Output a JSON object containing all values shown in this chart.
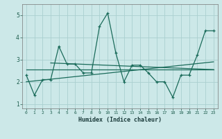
{
  "title": "",
  "xlabel": "Humidex (Indice chaleur)",
  "background_color": "#cce8e8",
  "grid_color": "#aad0d0",
  "line_color": "#1a6b5a",
  "xlim": [
    -0.5,
    23.5
  ],
  "ylim": [
    0.8,
    5.5
  ],
  "yticks": [
    1,
    2,
    3,
    4,
    5
  ],
  "xticks": [
    0,
    1,
    2,
    3,
    4,
    5,
    6,
    7,
    8,
    9,
    10,
    11,
    12,
    13,
    14,
    15,
    16,
    17,
    18,
    19,
    20,
    21,
    22,
    23
  ],
  "main_line_x": [
    0,
    1,
    2,
    3,
    4,
    5,
    6,
    7,
    8,
    9,
    10,
    11,
    12,
    13,
    14,
    15,
    16,
    17,
    18,
    19,
    20,
    21,
    22,
    23
  ],
  "main_line_y": [
    2.3,
    1.4,
    2.1,
    2.1,
    3.6,
    2.8,
    2.8,
    2.4,
    2.4,
    4.5,
    5.1,
    3.3,
    2.0,
    2.75,
    2.75,
    2.4,
    2.0,
    2.0,
    1.3,
    2.3,
    2.3,
    3.2,
    4.3,
    4.3
  ],
  "trend1_x": [
    0,
    23
  ],
  "trend1_y": [
    2.55,
    2.55
  ],
  "trend2_x": [
    0,
    23
  ],
  "trend2_y": [
    2.0,
    2.9
  ],
  "trend3_x": [
    3,
    23
  ],
  "trend3_y": [
    2.85,
    2.55
  ]
}
